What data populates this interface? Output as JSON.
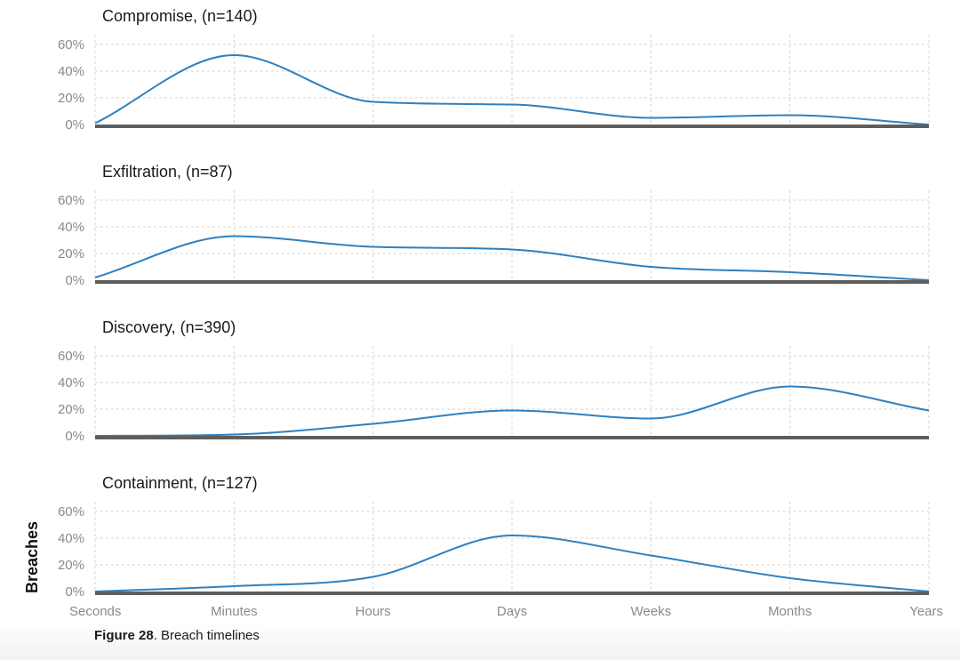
{
  "figure": {
    "label": "Figure 28",
    "caption": ". Breach timelines"
  },
  "colors": {
    "line": "#2f80c0",
    "baseline": "#5e5e5e",
    "grid": "#d6d6d6"
  },
  "chart_data": [
    {
      "type": "area",
      "title": "Compromise, (n=140)",
      "ylabel": "Breaches",
      "categories": [
        "Seconds",
        "Minutes",
        "Hours",
        "Days",
        "Weeks",
        "Months",
        "Years"
      ],
      "ylim": [
        0,
        0.65
      ],
      "y_ticks": [
        "0%",
        "20%",
        "40%",
        "60%"
      ],
      "grid": true,
      "values": [
        0.01,
        0.52,
        0.17,
        0.15,
        0.05,
        0.07,
        0.0
      ]
    },
    {
      "type": "area",
      "title": "Exfiltration, (n=87)",
      "ylabel": "Breaches",
      "categories": [
        "Seconds",
        "Minutes",
        "Hours",
        "Days",
        "Weeks",
        "Months",
        "Years"
      ],
      "ylim": [
        0,
        0.65
      ],
      "y_ticks": [
        "0%",
        "20%",
        "40%",
        "60%"
      ],
      "grid": true,
      "values": [
        0.02,
        0.33,
        0.25,
        0.23,
        0.1,
        0.06,
        0.0
      ]
    },
    {
      "type": "area",
      "title": "Discovery, (n=390)",
      "ylabel": "Breaches",
      "categories": [
        "Seconds",
        "Minutes",
        "Hours",
        "Days",
        "Weeks",
        "Months",
        "Years"
      ],
      "ylim": [
        0,
        0.65
      ],
      "y_ticks": [
        "0%",
        "20%",
        "40%",
        "60%"
      ],
      "grid": true,
      "values": [
        0.0,
        0.01,
        0.09,
        0.19,
        0.13,
        0.37,
        0.19
      ]
    },
    {
      "type": "area",
      "title": "Containment, (n=127)",
      "ylabel": "Breaches",
      "categories": [
        "Seconds",
        "Minutes",
        "Hours",
        "Days",
        "Weeks",
        "Months",
        "Years"
      ],
      "ylim": [
        0,
        0.65
      ],
      "y_ticks": [
        "0%",
        "20%",
        "40%",
        "60%"
      ],
      "grid": true,
      "values": [
        0.0,
        0.04,
        0.11,
        0.42,
        0.27,
        0.1,
        0.0
      ]
    }
  ]
}
